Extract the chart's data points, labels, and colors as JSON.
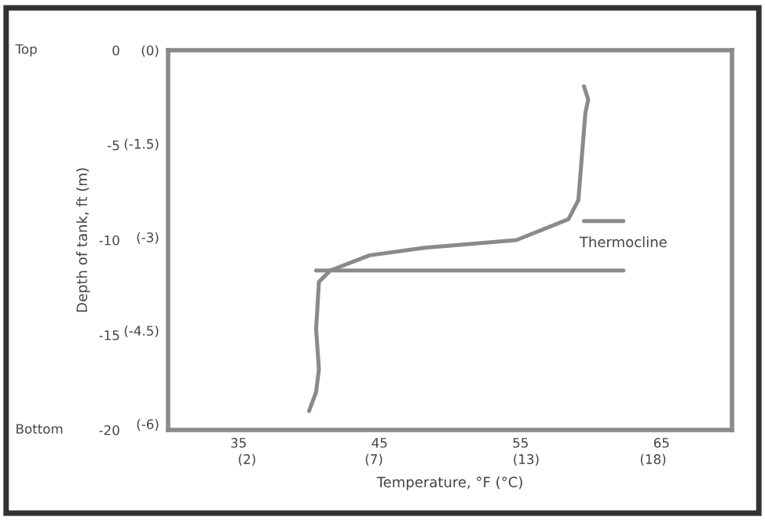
{
  "chart_data": {
    "type": "line",
    "xlabel": "Temperature, °F (°C)",
    "ylabel": "Depth of tank, ft (m)",
    "xlim": [
      30,
      70
    ],
    "ylim": [
      -20,
      0
    ],
    "xticks": [
      35,
      45,
      55,
      65
    ],
    "x2lim": [
      -1.11,
      21.11
    ],
    "x2ticks": [
      {
        "value": 2,
        "label": "(2)"
      },
      {
        "value": 7,
        "label": "(7)"
      },
      {
        "value": 13,
        "label": "(13)"
      },
      {
        "value": 18,
        "label": "(18)"
      }
    ],
    "yticks": [
      0,
      -5,
      -10,
      -15,
      -20
    ],
    "y2lim": [
      -6.096,
      0
    ],
    "y2ticks": [
      {
        "value": 0,
        "label": "(0)"
      },
      {
        "value": -1.5,
        "label": "(-1.5)"
      },
      {
        "value": -3,
        "label": "(-3)"
      },
      {
        "value": -4.5,
        "label": "(-4.5)"
      },
      {
        "value": -6,
        "label": "(-6)"
      }
    ],
    "grid": false,
    "marker": "none",
    "line_style": "solid",
    "series": [
      {
        "color": "#8a8a8a",
        "x": [
          59.5,
          59.8,
          59.6,
          59.1,
          58.4,
          54.7,
          48.2,
          44.3,
          41.5,
          40.7,
          40.5,
          40.7,
          40.5,
          40.0
        ],
        "values": [
          -1.9,
          -2.6,
          -3.3,
          -7.9,
          -8.9,
          -10.0,
          -10.4,
          -10.8,
          -11.6,
          -12.2,
          -14.7,
          -16.8,
          -18.0,
          -19.0
        ]
      },
      {
        "color": "#8a8a8a",
        "x": [
          59.5,
          62.3
        ],
        "values": [
          -9.0,
          -9.0
        ]
      },
      {
        "color": "#8a8a8a",
        "x": [
          40.5,
          62.3
        ],
        "values": [
          -11.6,
          -11.6
        ]
      }
    ],
    "annotations": [
      {
        "text": "Thermocline",
        "x": 62.3,
        "y": -9.0
      },
      "Top",
      "Bottom"
    ]
  }
}
